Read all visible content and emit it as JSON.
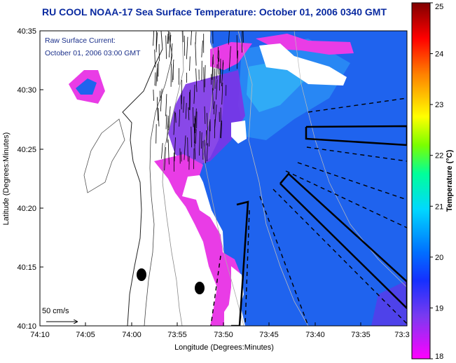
{
  "title": "RU COOL  NOAA-17  Sea Surface Temperature:  October 01, 2006 0340 GMT",
  "annotation": {
    "line1": "Raw Surface Current:",
    "line2": "October 01, 2006 03:00 GMT"
  },
  "scale_label": "50 cm/s",
  "axes": {
    "xlabel": "Longitude (Degrees:Minutes)",
    "ylabel": "Latitude (Degrees:Minutes)",
    "xticks": [
      "74:10",
      "74:05",
      "74:00",
      "73:55",
      "73:50",
      "73:45",
      "73:40",
      "73:35",
      "73:3"
    ],
    "yticks": [
      "40:35",
      "40:30",
      "40:25",
      "40:20",
      "40:15",
      "40:10"
    ]
  },
  "colorbar": {
    "label": "Temperature (°C)",
    "ticks": [
      "25",
      "24",
      "23",
      "22",
      "21",
      "20",
      "19",
      "18"
    ],
    "min": 18,
    "max": 25
  },
  "colors": {
    "title": "#0a2aa0",
    "sst_main": "#1f63ee",
    "sst_warm": "#2fb8f5",
    "sst_cold": "#7c34e6",
    "sst_edge": "#e93ce6",
    "land": "#ffffff"
  }
}
